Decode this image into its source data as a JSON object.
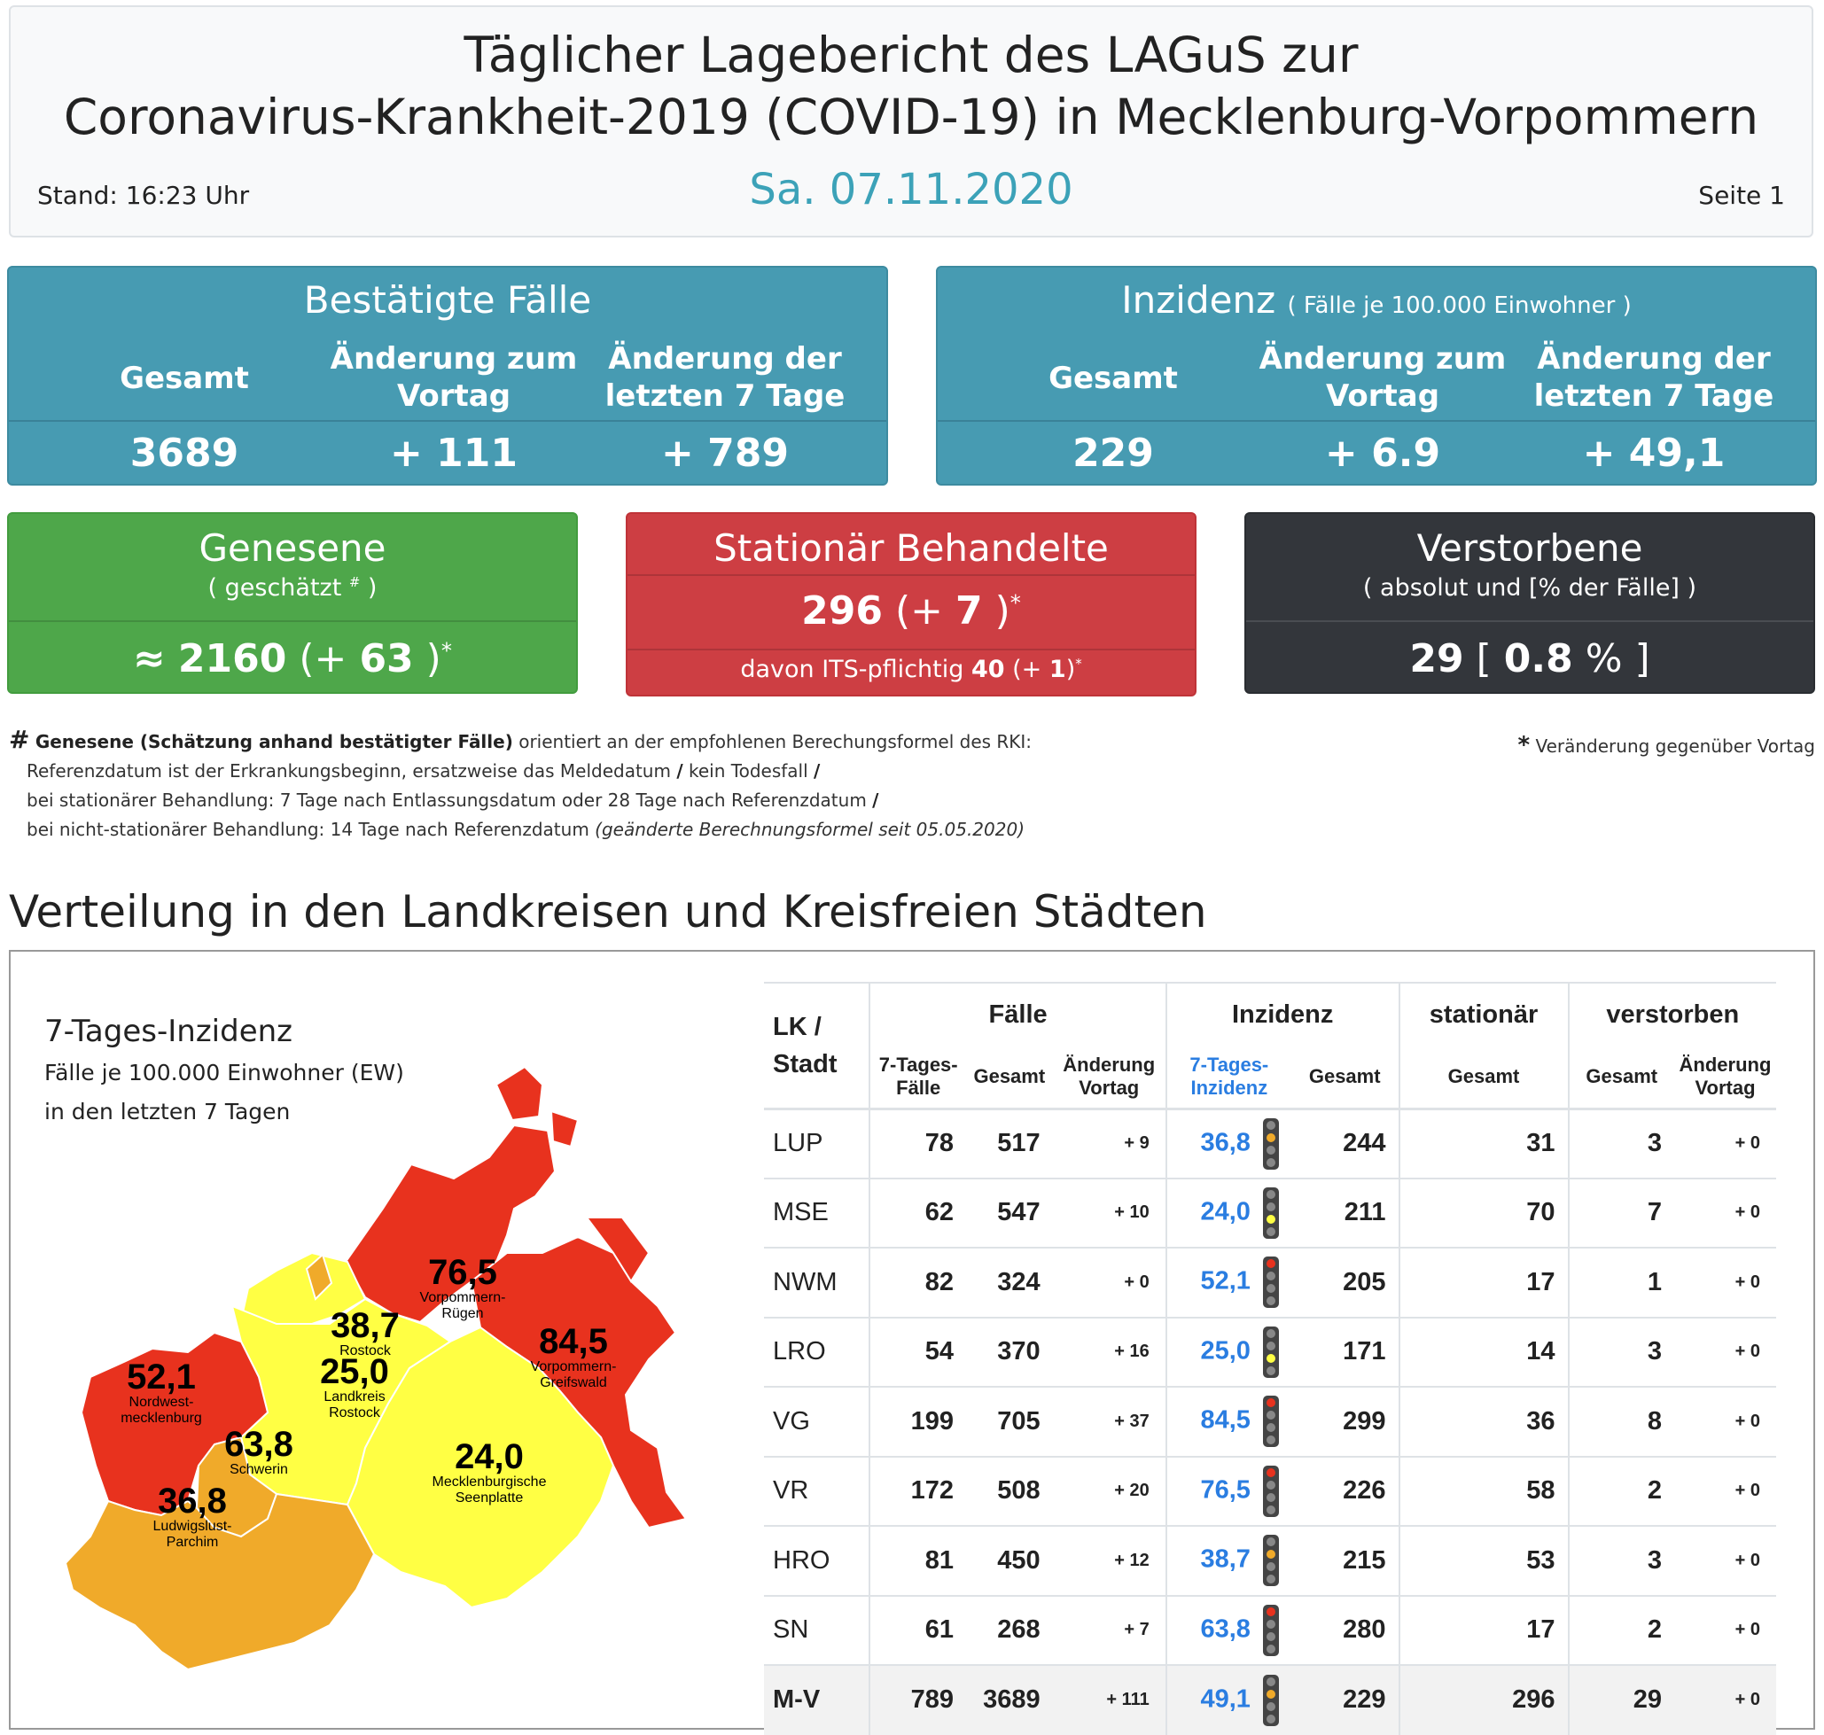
{
  "header": {
    "title_line1": "Täglicher Lagebericht des LAGuS zur",
    "title_line2": "Coronavirus-Krankheit-2019 (COVID-19) in Mecklenburg-Vorpommern",
    "stand": "Stand: 16:23 Uhr",
    "date": "Sa. 07.11.2020",
    "page": "Seite 1"
  },
  "confirmed": {
    "title": "Bestätigte Fälle",
    "col1": "Gesamt",
    "col2a": "Änderung zum",
    "col2b": "Vortag",
    "col3a": "Änderung der",
    "col3b": "letzten 7 Tage",
    "v1": "3689",
    "v2": "+ 111",
    "v3": "+ 789"
  },
  "incidence": {
    "title": "Inzidenz",
    "subtitle": "( Fälle je 100.000 Einwohner )",
    "col1": "Gesamt",
    "col2a": "Änderung zum",
    "col2b": "Vortag",
    "col3a": "Änderung der",
    "col3b": "letzten 7 Tage",
    "v1": "229",
    "v2": "+ 6.9",
    "v3": "+ 49,1"
  },
  "recovered": {
    "title": "Genesene",
    "sub_prefix": "( geschätzt",
    "sub_mark": "#",
    "sub_suffix": ")",
    "approx": "≈",
    "value": "2160",
    "open": "(+",
    "change": "63",
    "close": ")",
    "star": "*"
  },
  "hospital": {
    "title": "Stationär Behandelte",
    "value": "296",
    "open": "(+",
    "change": "7",
    "close": ")",
    "star": "*",
    "its_text": "davon ITS-pflichtig",
    "its_value": "40",
    "its_open": "(+",
    "its_change": "1",
    "its_close": ")"
  },
  "deaths": {
    "title": "Verstorbene",
    "sub": "( absolut und [% der Fälle] )",
    "value": "29",
    "open": "[",
    "pct": "0.8",
    "unit": "%",
    "close": "]"
  },
  "footnotes": {
    "hash": "#",
    "bold": "Genesene (Schätzung anhand bestätigter Fälle)",
    "line1_rest": "orientiert an der empfohlenen Berechungsformel des RKI:",
    "line2": "Referenzdatum ist der Erkrankungsbeginn, ersatzweise das Meldedatum",
    "line2_b": "kein Todesfall",
    "slash": "/",
    "line3": "bei stationärer Behandlung: 7 Tage nach Entlassungsdatum oder 28 Tage nach Referenzdatum",
    "line4": "bei nicht-stationärer Behandlung: 14 Tage nach Referenzdatum",
    "line4_italic": "(geänderte Berechnungsformel seit 05.05.2020)",
    "star": "*",
    "star_text": "Veränderung gegenüber Vortag"
  },
  "section_title": "Verteilung in den Landkreisen und Kreisfreien Städten",
  "map": {
    "title": "7-Tages-Inzidenz",
    "sub1": "Fälle je 100.000 Einwohner (EW)",
    "sub2": "in den letzten 7 Tagen",
    "colors": {
      "red": "#e8321e",
      "orange": "#f0aa2a",
      "yellow": "#ffff44"
    },
    "labels": [
      {
        "num": "76,5",
        "name1": "Vorpommern-",
        "name2": "Rügen"
      },
      {
        "num": "38,7",
        "name1": "Rostock",
        "name2": ""
      },
      {
        "num": "84,5",
        "name1": "Vorpommern-",
        "name2": "Greifswald"
      },
      {
        "num": "52,1",
        "name1": "Nordwest-",
        "name2": "mecklenburg"
      },
      {
        "num": "25,0",
        "name1": "Landkreis",
        "name2": "Rostock"
      },
      {
        "num": "63,8",
        "name1": "Schwerin",
        "name2": ""
      },
      {
        "num": "24,0",
        "name1": "Mecklenburgische",
        "name2": "Seenplatte"
      },
      {
        "num": "36,8",
        "name1": "Ludwigslust-",
        "name2": "Parchim"
      }
    ]
  },
  "table": {
    "h_lk1": "LK /",
    "h_lk2": "Stadt",
    "h_faelle": "Fälle",
    "h_inzidenz": "Inzidenz",
    "h_stationaer": "stationär",
    "h_verstorben": "verstorben",
    "sh_7tf1": "7-Tages-",
    "sh_7tf2": "Fälle",
    "sh_gesamt": "Gesamt",
    "sh_aend1": "Änderung",
    "sh_aend2": "Vortag",
    "sh_7ti1": "7-Tages-",
    "sh_7ti2": "Inzidenz",
    "rows": [
      {
        "lk": "LUP",
        "f7": "78",
        "fg": "517",
        "fa": "+ 9",
        "i7": "36,8",
        "light": "orange",
        "ig": "244",
        "st": "31",
        "vg": "3",
        "va": "+ 0"
      },
      {
        "lk": "MSE",
        "f7": "62",
        "fg": "547",
        "fa": "+ 10",
        "i7": "24,0",
        "light": "yellow",
        "ig": "211",
        "st": "70",
        "vg": "7",
        "va": "+ 0"
      },
      {
        "lk": "NWM",
        "f7": "82",
        "fg": "324",
        "fa": "+ 0",
        "i7": "52,1",
        "light": "red",
        "ig": "205",
        "st": "17",
        "vg": "1",
        "va": "+ 0"
      },
      {
        "lk": "LRO",
        "f7": "54",
        "fg": "370",
        "fa": "+ 16",
        "i7": "25,0",
        "light": "yellow",
        "ig": "171",
        "st": "14",
        "vg": "3",
        "va": "+ 0"
      },
      {
        "lk": "VG",
        "f7": "199",
        "fg": "705",
        "fa": "+ 37",
        "i7": "84,5",
        "light": "red",
        "ig": "299",
        "st": "36",
        "vg": "8",
        "va": "+ 0"
      },
      {
        "lk": "VR",
        "f7": "172",
        "fg": "508",
        "fa": "+ 20",
        "i7": "76,5",
        "light": "red",
        "ig": "226",
        "st": "58",
        "vg": "2",
        "va": "+ 0"
      },
      {
        "lk": "HRO",
        "f7": "81",
        "fg": "450",
        "fa": "+ 12",
        "i7": "38,7",
        "light": "orange",
        "ig": "215",
        "st": "53",
        "vg": "3",
        "va": "+ 0"
      },
      {
        "lk": "SN",
        "f7": "61",
        "fg": "268",
        "fa": "+ 7",
        "i7": "63,8",
        "light": "red",
        "ig": "280",
        "st": "17",
        "vg": "2",
        "va": "+ 0"
      },
      {
        "lk": "M-V",
        "f7": "789",
        "fg": "3689",
        "fa": "+ 111",
        "i7": "49,1",
        "light": "orange",
        "ig": "229",
        "st": "296",
        "vg": "29",
        "va": "+ 0"
      }
    ]
  }
}
